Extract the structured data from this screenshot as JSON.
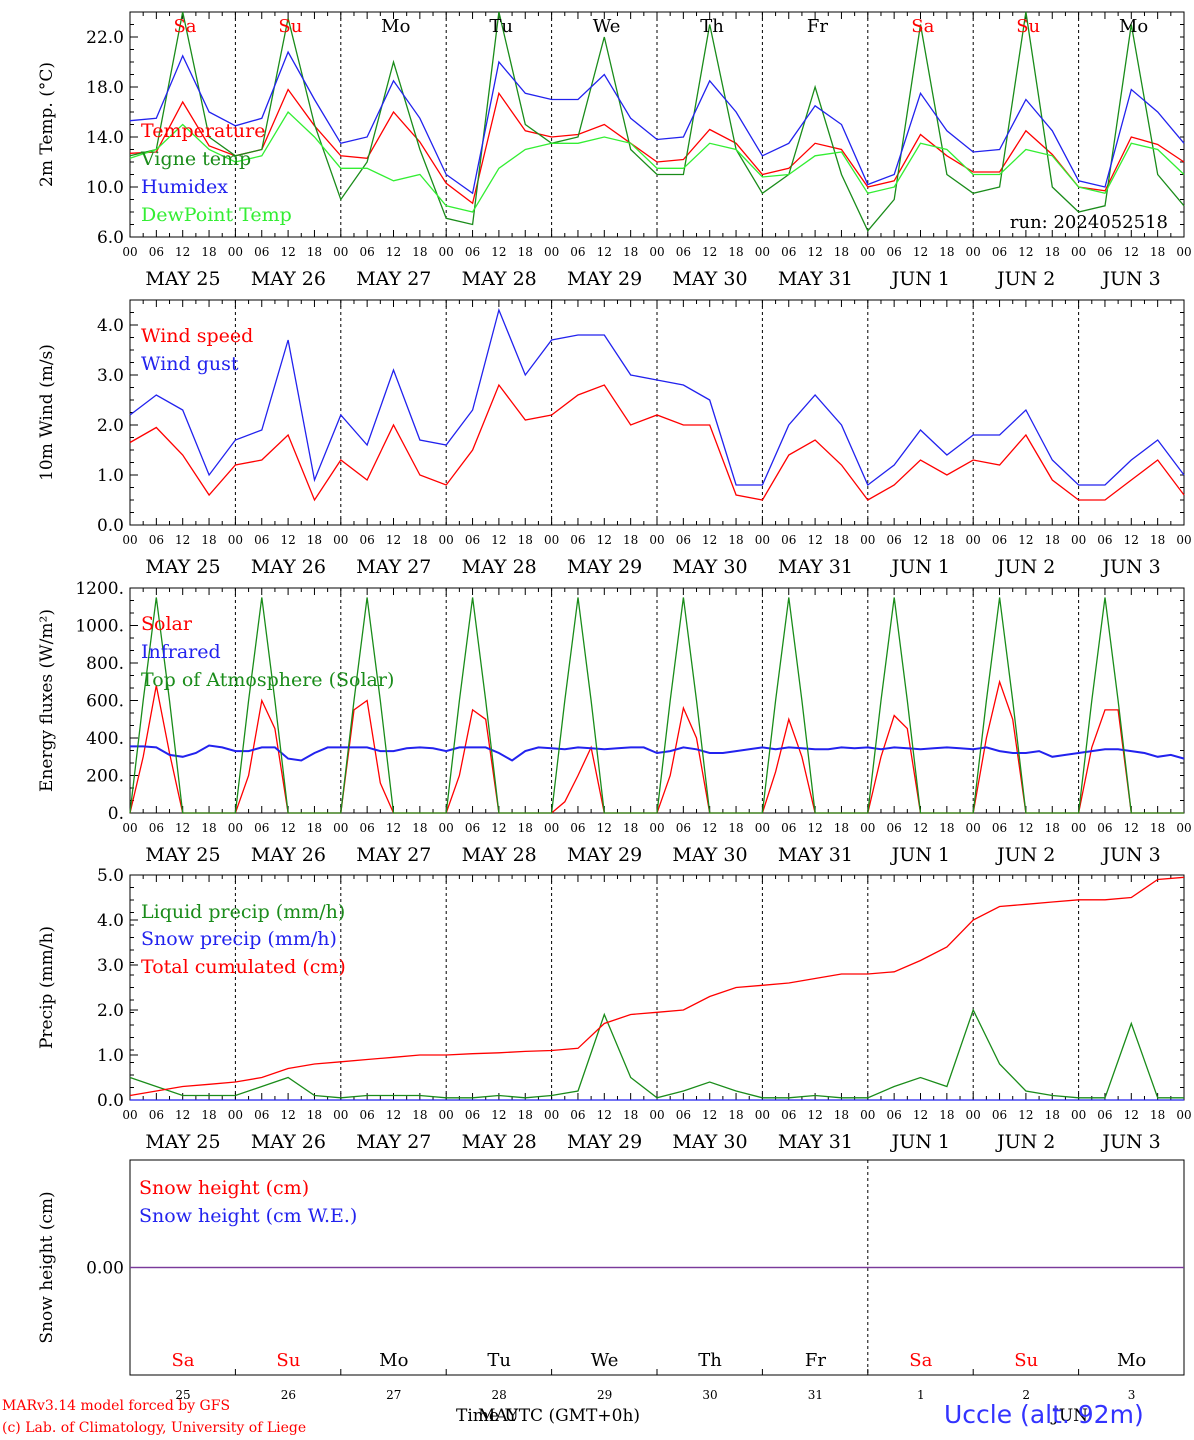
{
  "footer": {
    "model": "MARv3.14 model forced by GFS",
    "credit": "(c) Lab. of Climatology, University of Liege",
    "station": "Uccle (alt. 92m)",
    "xtitle": "Time UTC (GMT+0h)",
    "overlay_may": "MAY",
    "overlay_jun": "JUN"
  },
  "colors": {
    "red": "#ff0000",
    "green": "#1a8c1a",
    "blue": "#2222ee",
    "lightgreen": "#33ee33",
    "purple": "#7a3a9a",
    "weekend": "#ff0000",
    "weekday": "#000000"
  },
  "days": [
    {
      "dow": "Sa",
      "date": "MAY 25",
      "num": "25",
      "weekend": true
    },
    {
      "dow": "Su",
      "date": "MAY 26",
      "num": "26",
      "weekend": true
    },
    {
      "dow": "Mo",
      "date": "MAY 27",
      "num": "27",
      "weekend": false
    },
    {
      "dow": "Tu",
      "date": "MAY 28",
      "num": "28",
      "weekend": false
    },
    {
      "dow": "We",
      "date": "MAY 29",
      "num": "29",
      "weekend": false
    },
    {
      "dow": "Th",
      "date": "MAY 30",
      "num": "30",
      "weekend": false
    },
    {
      "dow": "Fr",
      "date": "MAY 31",
      "num": "31",
      "weekend": false
    },
    {
      "dow": "Sa",
      "date": "JUN  1",
      "num": "1",
      "weekend": true
    },
    {
      "dow": "Su",
      "date": "JUN  2",
      "num": "2",
      "weekend": true
    },
    {
      "dow": "Mo",
      "date": "JUN  3",
      "num": "3",
      "weekend": false
    }
  ],
  "hour_ticks": [
    "00",
    "06",
    "12",
    "18"
  ],
  "chart_data": [
    {
      "type": "line",
      "ylabel": "2m Temp. (°C)",
      "ylim": [
        6,
        24
      ],
      "yticks": [
        "6.0",
        "10.0",
        "14.0",
        "18.0",
        "22.0"
      ],
      "annotation": "run: 2024052518",
      "x": [
        0,
        0.25,
        0.5,
        0.75,
        1,
        1.25,
        1.5,
        1.75,
        2,
        2.25,
        2.5,
        2.75,
        3,
        3.25,
        3.5,
        3.75,
        4,
        4.25,
        4.5,
        4.75,
        5,
        5.25,
        5.5,
        5.75,
        6,
        6.25,
        6.5,
        6.75,
        7,
        7.25,
        7.5,
        7.75,
        8,
        8.25,
        8.5,
        8.75,
        9,
        9.25,
        9.5,
        9.75,
        10
      ],
      "series": [
        {
          "name": "Temperature",
          "color": "red",
          "values": [
            12.7,
            12.8,
            16.8,
            13.3,
            12.5,
            13.0,
            17.8,
            14.9,
            12.5,
            12.3,
            16.0,
            13.6,
            10.3,
            8.7,
            17.5,
            14.5,
            14.0,
            14.2,
            15.0,
            13.5,
            12.0,
            12.2,
            14.6,
            13.5,
            11.0,
            11.5,
            13.5,
            13.0,
            10.0,
            10.5,
            14.2,
            12.5,
            11.2,
            11.2,
            14.5,
            12.6,
            10.0,
            9.7,
            14.0,
            13.4,
            12.0
          ]
        },
        {
          "name": "Vigne temp",
          "color": "green",
          "values": [
            12.5,
            13.0,
            24.0,
            14.0,
            12.5,
            13.0,
            23.5,
            15.0,
            9.0,
            12.0,
            20.0,
            13.0,
            7.5,
            7.0,
            24.0,
            15.0,
            13.5,
            14.0,
            22.0,
            13.0,
            11.0,
            11.0,
            23.0,
            13.0,
            9.5,
            11.0,
            18.0,
            11.0,
            6.5,
            9.0,
            23.0,
            11.0,
            9.5,
            10.0,
            24.0,
            10.0,
            8.0,
            8.5,
            23.0,
            11.0,
            8.5
          ]
        },
        {
          "name": "Humidex",
          "color": "blue",
          "values": [
            15.3,
            15.5,
            20.5,
            16.0,
            14.9,
            15.5,
            20.8,
            17.0,
            13.5,
            14.0,
            18.5,
            15.5,
            11.0,
            9.5,
            20.0,
            17.5,
            17.0,
            17.0,
            19.0,
            15.5,
            13.8,
            14.0,
            18.5,
            16.0,
            12.5,
            13.5,
            16.5,
            15.0,
            10.2,
            11.0,
            17.5,
            14.5,
            12.8,
            13.0,
            17.0,
            14.5,
            10.5,
            10.0,
            17.8,
            16.0,
            13.5
          ]
        },
        {
          "name": "DewPoint Temp",
          "color": "lightgreen",
          "values": [
            12.3,
            13.0,
            15.0,
            13.0,
            12.0,
            12.5,
            16.0,
            14.0,
            11.5,
            11.5,
            10.5,
            11.0,
            8.5,
            8.0,
            11.5,
            13.0,
            13.5,
            13.5,
            14.0,
            13.5,
            11.5,
            11.5,
            13.5,
            13.0,
            10.8,
            11.0,
            12.5,
            12.8,
            9.5,
            10.0,
            13.5,
            13.0,
            11.0,
            11.0,
            13.0,
            12.5,
            10.0,
            9.5,
            13.5,
            13.0,
            11.0
          ]
        }
      ]
    },
    {
      "type": "line",
      "ylabel": "10m Wind (m/s)",
      "ylim": [
        0,
        4.5
      ],
      "yticks": [
        "0.0",
        "1.0",
        "2.0",
        "3.0",
        "4.0"
      ],
      "x": [
        0,
        0.25,
        0.5,
        0.75,
        1,
        1.25,
        1.5,
        1.75,
        2,
        2.25,
        2.5,
        2.75,
        3,
        3.25,
        3.5,
        3.75,
        4,
        4.25,
        4.5,
        4.75,
        5,
        5.25,
        5.5,
        5.75,
        6,
        6.25,
        6.5,
        6.75,
        7,
        7.25,
        7.5,
        7.75,
        8,
        8.25,
        8.5,
        8.75,
        9,
        9.25,
        9.5,
        9.75,
        10
      ],
      "series": [
        {
          "name": "Wind speed",
          "color": "red",
          "values": [
            1.65,
            1.95,
            1.4,
            0.6,
            1.2,
            1.3,
            1.8,
            0.5,
            1.3,
            0.9,
            2.0,
            1.0,
            0.8,
            1.5,
            2.8,
            2.1,
            2.2,
            2.6,
            2.8,
            2.0,
            2.2,
            2.0,
            2.0,
            0.6,
            0.5,
            1.4,
            1.7,
            1.2,
            0.5,
            0.8,
            1.3,
            1.0,
            1.3,
            1.2,
            1.8,
            0.9,
            0.5,
            0.5,
            0.9,
            1.3,
            0.6
          ]
        },
        {
          "name": "Wind gust",
          "color": "blue",
          "values": [
            2.2,
            2.6,
            2.3,
            1.0,
            1.7,
            1.9,
            3.7,
            0.9,
            2.2,
            1.6,
            3.1,
            1.7,
            1.6,
            2.3,
            4.3,
            3.0,
            3.7,
            3.8,
            3.8,
            3.0,
            2.9,
            2.8,
            2.5,
            0.8,
            0.8,
            2.0,
            2.6,
            2.0,
            0.8,
            1.2,
            1.9,
            1.4,
            1.8,
            1.8,
            2.3,
            1.3,
            0.8,
            0.8,
            1.3,
            1.7,
            1.0
          ]
        }
      ]
    },
    {
      "type": "line",
      "ylabel": "Energy fluxes (W/m²)",
      "ylim": [
        0,
        1200
      ],
      "yticks": [
        "0.",
        "200.",
        "400.",
        "600.",
        "800.",
        "1000.",
        "1200."
      ],
      "x_step": 0.125,
      "series": [
        {
          "name": "Solar",
          "color": "red",
          "values": [
            0,
            300,
            680,
            320,
            0,
            0,
            0,
            0,
            0,
            200,
            600,
            450,
            0,
            0,
            0,
            0,
            0,
            550,
            600,
            160,
            0,
            0,
            0,
            0,
            0,
            200,
            550,
            500,
            0,
            0,
            0,
            0,
            0,
            60,
            200,
            350,
            0,
            0,
            0,
            0,
            0,
            200,
            560,
            400,
            0,
            0,
            0,
            0,
            0,
            220,
            500,
            300,
            0,
            0,
            0,
            0,
            0,
            300,
            520,
            450,
            0,
            0,
            0,
            0,
            0,
            400,
            700,
            500,
            0,
            0,
            0,
            0,
            0,
            350,
            550,
            550,
            0,
            0,
            0,
            0,
            0
          ]
        },
        {
          "name": "Infrared",
          "color": "blue",
          "values": [
            355,
            355,
            350,
            310,
            300,
            320,
            360,
            350,
            330,
            330,
            350,
            350,
            290,
            280,
            320,
            350,
            350,
            350,
            350,
            330,
            330,
            345,
            350,
            345,
            330,
            350,
            350,
            350,
            320,
            280,
            330,
            350,
            345,
            340,
            350,
            345,
            340,
            345,
            350,
            350,
            320,
            330,
            350,
            340,
            320,
            320,
            330,
            340,
            350,
            340,
            350,
            345,
            340,
            340,
            350,
            345,
            350,
            340,
            350,
            345,
            340,
            345,
            350,
            345,
            340,
            350,
            330,
            320,
            320,
            330,
            300,
            310,
            320,
            330,
            340,
            340,
            330,
            320,
            300,
            310,
            290
          ]
        },
        {
          "name": "Top of Atmosphere (Solar)",
          "color": "green",
          "values": [
            0,
            600,
            1150,
            600,
            0,
            0,
            0,
            0,
            0,
            600,
            1150,
            600,
            0,
            0,
            0,
            0,
            0,
            600,
            1150,
            600,
            0,
            0,
            0,
            0,
            0,
            600,
            1150,
            600,
            0,
            0,
            0,
            0,
            0,
            600,
            1150,
            600,
            0,
            0,
            0,
            0,
            0,
            600,
            1150,
            600,
            0,
            0,
            0,
            0,
            0,
            600,
            1150,
            600,
            0,
            0,
            0,
            0,
            0,
            600,
            1150,
            600,
            0,
            0,
            0,
            0,
            0,
            600,
            1150,
            600,
            0,
            0,
            0,
            0,
            0,
            600,
            1150,
            600,
            0,
            0,
            0,
            0,
            0
          ]
        }
      ]
    },
    {
      "type": "line",
      "ylabel": "Precip (mm/h)",
      "ylim": [
        0,
        5
      ],
      "yticks": [
        "0.0",
        "1.0",
        "2.0",
        "3.0",
        "4.0",
        "5.0"
      ],
      "x": [
        0,
        0.25,
        0.5,
        0.75,
        1,
        1.25,
        1.5,
        1.75,
        2,
        2.25,
        2.5,
        2.75,
        3,
        3.25,
        3.5,
        3.75,
        4,
        4.25,
        4.5,
        4.75,
        5,
        5.25,
        5.5,
        5.75,
        6,
        6.25,
        6.5,
        6.75,
        7,
        7.25,
        7.5,
        7.75,
        8,
        8.25,
        8.5,
        8.75,
        9,
        9.25,
        9.5,
        9.75,
        10
      ],
      "series": [
        {
          "name": "Liquid precip (mm/h)",
          "color": "green",
          "values": [
            0.5,
            0.3,
            0.1,
            0.1,
            0.1,
            0.3,
            0.5,
            0.1,
            0.05,
            0.1,
            0.1,
            0.1,
            0.05,
            0.05,
            0.1,
            0.05,
            0.1,
            0.2,
            1.9,
            0.5,
            0.05,
            0.2,
            0.4,
            0.2,
            0.05,
            0.05,
            0.1,
            0.05,
            0.05,
            0.3,
            0.5,
            0.3,
            2.0,
            0.8,
            0.2,
            0.1,
            0.05,
            0.05,
            1.7,
            0.05,
            0.05
          ]
        },
        {
          "name": "Snow precip (mm/h)",
          "color": "blue",
          "values": [
            0,
            0,
            0,
            0,
            0,
            0,
            0,
            0,
            0,
            0,
            0,
            0,
            0,
            0,
            0,
            0,
            0,
            0,
            0,
            0,
            0,
            0,
            0,
            0,
            0,
            0,
            0,
            0,
            0,
            0,
            0,
            0,
            0,
            0,
            0,
            0,
            0,
            0,
            0,
            0,
            0
          ]
        },
        {
          "name": "Total cumulated (cm)",
          "color": "red",
          "values": [
            0.1,
            0.2,
            0.3,
            0.35,
            0.4,
            0.5,
            0.7,
            0.8,
            0.85,
            0.9,
            0.95,
            1.0,
            1.0,
            1.03,
            1.05,
            1.08,
            1.1,
            1.15,
            1.7,
            1.9,
            1.95,
            2.0,
            2.3,
            2.5,
            2.55,
            2.6,
            2.7,
            2.8,
            2.8,
            2.85,
            3.1,
            3.4,
            4.0,
            4.3,
            4.35,
            4.4,
            4.45,
            4.45,
            4.5,
            4.9,
            4.95
          ]
        }
      ]
    },
    {
      "type": "line",
      "ylabel": "Snow height (cm)",
      "ylim": [
        -1,
        1
      ],
      "yticks": [
        "0.00"
      ],
      "x": [
        0,
        10
      ],
      "series": [
        {
          "name": "Snow height (cm)",
          "color": "red",
          "values": [
            0,
            0
          ]
        },
        {
          "name": "Snow height (cm W.E.)",
          "color": "blue",
          "values": [
            0,
            0
          ]
        }
      ]
    }
  ]
}
